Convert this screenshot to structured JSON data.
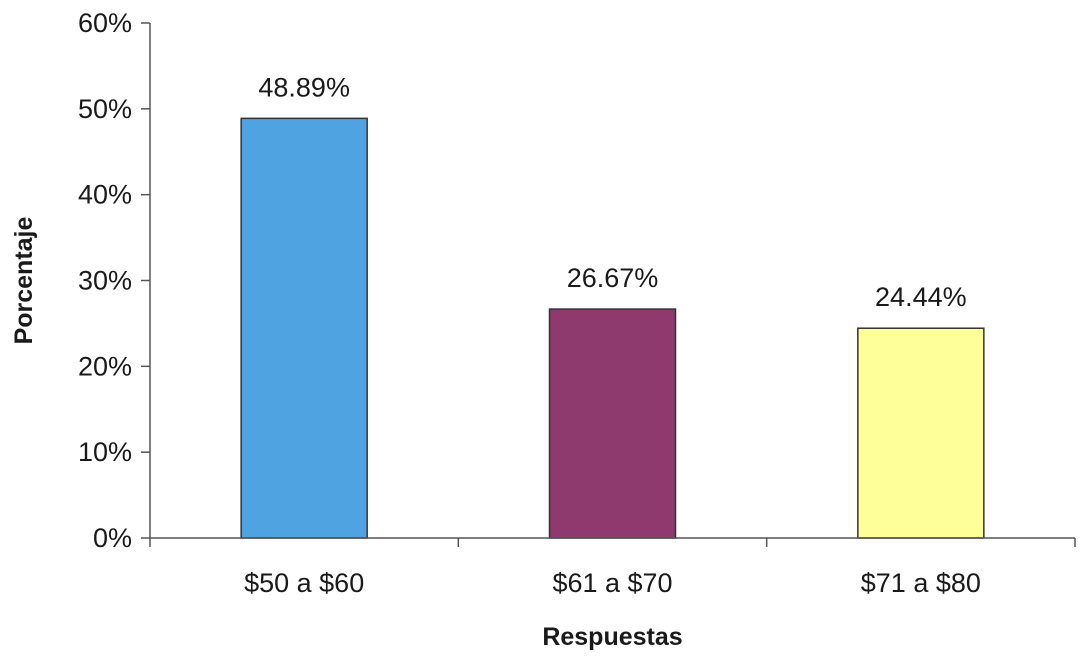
{
  "chart_data": {
    "type": "bar",
    "title": "",
    "categories": [
      "$50 a $60",
      "$61 a $70",
      "$71 a $80"
    ],
    "values": [
      48.89,
      26.67,
      24.44
    ],
    "data_labels": [
      "48.89%",
      "26.67%",
      "24.44%"
    ],
    "colors": [
      "#4ea3e0",
      "#8e3a6e",
      "#ffff99"
    ],
    "xlabel": "Respuestas",
    "ylabel": "Porcentaje",
    "ylim": [
      0,
      60
    ],
    "yticks": [
      0,
      10,
      20,
      30,
      40,
      50,
      60
    ],
    "ytick_labels": [
      "0%",
      "10%",
      "20%",
      "30%",
      "40%",
      "50%",
      "60%"
    ],
    "grid": false,
    "legend": "none"
  }
}
